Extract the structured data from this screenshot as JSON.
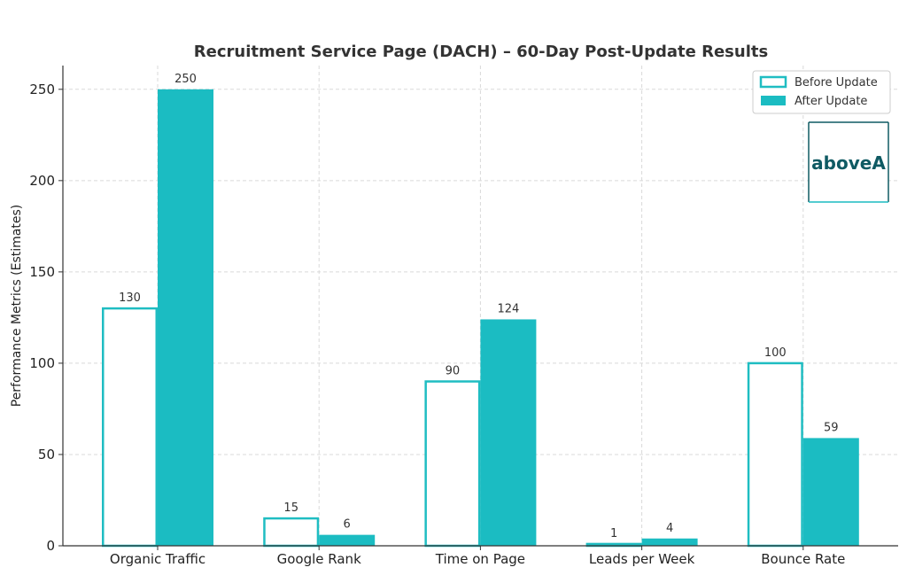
{
  "chart_data": {
    "type": "bar",
    "title": "Recruitment Service Page (DACH) – 60-Day Post-Update Results",
    "xlabel": "",
    "ylabel": "Performance Metrics (Estimates)",
    "categories": [
      "Organic Traffic",
      "Google Rank",
      "Time on Page",
      "Leads per Week",
      "Bounce Rate"
    ],
    "series": [
      {
        "name": "Before Update",
        "values": [
          130,
          15,
          90,
          1,
          100
        ],
        "style": "outline",
        "color": "#1fbdc2"
      },
      {
        "name": "After Update",
        "values": [
          250,
          6,
          124,
          4,
          59
        ],
        "style": "filled",
        "color": "#1bbcc2"
      }
    ],
    "ylim": [
      0,
      263
    ],
    "yticks": [
      0,
      50,
      100,
      150,
      200,
      250
    ],
    "grid": true,
    "legend_position": "top-right"
  },
  "logo": {
    "text": "aboveA",
    "color": "#0f5a63"
  }
}
